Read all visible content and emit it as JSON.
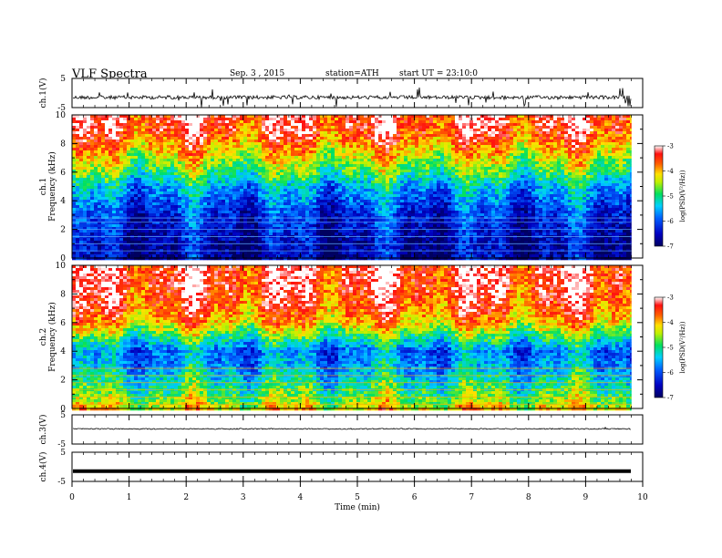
{
  "header": {
    "title": "VLF Spectra",
    "date": "Sep. 3 , 2015",
    "station": "station=ATH",
    "start": "start UT = 23:10:0"
  },
  "chart_data": {
    "type": "heatmap",
    "x_axis": {
      "label": "Time (min)",
      "range": [
        0,
        10
      ],
      "ticks": [
        "0",
        "1",
        "2",
        "3",
        "4",
        "5",
        "6",
        "7",
        "8",
        "9",
        "10"
      ],
      "data_end_min": 9.8
    },
    "panels": [
      {
        "id": "ch1_waveform",
        "type": "line",
        "ylabel": "ch.1(V)",
        "ylim": [
          -5,
          5
        ],
        "yticks": [
          "5",
          "-5"
        ],
        "baseline": -1.5,
        "amplitude": "noisy spikes"
      },
      {
        "id": "ch1_spectrogram",
        "type": "heatmap",
        "ylabel_channel": "ch.1",
        "ylabel": "Frequency (kHz)",
        "ylim": [
          0,
          10
        ],
        "yticks": [
          "0",
          "2",
          "4",
          "6",
          "8",
          "10"
        ],
        "colorbar": {
          "label": "log(PSD(V²/Hz))",
          "range": [
            -7,
            -3
          ],
          "ticks": [
            "-3",
            "-4",
            "-5",
            "-6",
            "-7"
          ]
        },
        "profile_log_psd": [
          [
            0,
            -6.6
          ],
          [
            1,
            -6.6
          ],
          [
            2,
            -6.4
          ],
          [
            3,
            -6.2
          ],
          [
            4,
            -5.9
          ],
          [
            5,
            -5.5
          ],
          [
            6,
            -4.8
          ],
          [
            7,
            -4.3
          ],
          [
            8,
            -3.8
          ],
          [
            9,
            -3.4
          ],
          [
            10,
            -3.3
          ]
        ]
      },
      {
        "id": "ch2_spectrogram",
        "type": "heatmap",
        "ylabel_channel": "ch.2",
        "ylabel": "Frequency (kHz)",
        "ylim": [
          0,
          10
        ],
        "yticks": [
          "0",
          "2",
          "4",
          "6",
          "8",
          "10"
        ],
        "colorbar": {
          "label": "log(PSD(V²/Hz))",
          "range": [
            -7,
            -3
          ],
          "ticks": [
            "-3",
            "-4",
            "-5",
            "-6",
            "-7"
          ]
        },
        "profile_log_psd": [
          [
            0,
            -4.2
          ],
          [
            1,
            -4.8
          ],
          [
            2,
            -5.2
          ],
          [
            3,
            -5.6
          ],
          [
            4,
            -5.8
          ],
          [
            5,
            -4.9
          ],
          [
            6,
            -4.0
          ],
          [
            7,
            -3.6
          ],
          [
            8,
            -3.4
          ],
          [
            9,
            -3.3
          ],
          [
            10,
            -3.3
          ]
        ]
      },
      {
        "id": "ch3_waveform",
        "type": "line",
        "ylabel": "ch.3(V)",
        "ylim": [
          -5,
          5
        ],
        "yticks": [
          "5",
          "-5"
        ],
        "baseline": 0.2,
        "amplitude": "small"
      },
      {
        "id": "ch4_waveform",
        "type": "line",
        "ylabel": "ch.4(V)",
        "ylim": [
          -5,
          5
        ],
        "yticks": [
          "5",
          "-5"
        ],
        "baseline": -1.5,
        "amplitude": "flat thick"
      }
    ]
  }
}
